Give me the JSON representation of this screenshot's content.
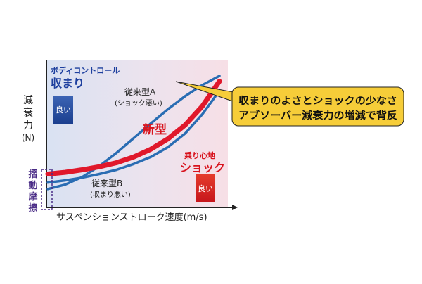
{
  "chart_data": {
    "type": "line",
    "xlabel": "サスペンションストローク速度(m/s)",
    "ylabel": [
      "減",
      "衰",
      "力",
      "(N)"
    ],
    "grid": false,
    "legend": "inline labels",
    "series": [
      {
        "name": "新型",
        "color": "#e0182b",
        "x": [
          0,
          1,
          2,
          3,
          4,
          5,
          6,
          7,
          8,
          9,
          10
        ],
        "values": [
          14,
          14.8,
          16,
          17.4,
          19.3,
          22,
          25.6,
          30.5,
          37,
          45.8,
          57.5
        ]
      },
      {
        "name": "従来型A",
        "sublabel": "(ショック悪い)",
        "color": "#2a6db3",
        "x": [
          0,
          1,
          2,
          3,
          4,
          5,
          6,
          7,
          8,
          9,
          10
        ],
        "values": [
          7,
          9,
          12.6,
          17.7,
          23.9,
          30.8,
          37.7,
          44.4,
          50.5,
          55.7,
          60
        ]
      },
      {
        "name": "従来型B",
        "sublabel": "(収まり悪い)",
        "color": "#2a6db3",
        "x": [
          0,
          1,
          2,
          3,
          4,
          5,
          6,
          7,
          8,
          9,
          10
        ],
        "values": [
          10,
          11,
          12.3,
          14,
          16,
          18.7,
          22,
          26.6,
          33,
          42,
          53
        ]
      }
    ],
    "annotations": {
      "body_control_line1": "ボディコントロール",
      "body_control_line2": "収まり",
      "good_left": "良い",
      "ride_line1": "乗り心地",
      "ride_line2": "ショック",
      "good_right": "良い",
      "friction": [
        "摺",
        "動",
        "摩",
        "擦"
      ],
      "callout_line1": "収まりのよさとショックの少なさ",
      "callout_line2": "アブソーバー減衰力の増減で背反"
    },
    "colors": {
      "new_model": "#e0182b",
      "conventional": "#2a6db3",
      "label_blue": "#1d3f9e",
      "label_red": "#d8141e",
      "friction_purple": "#4a2c86",
      "callout_fill": "#f6cd39",
      "background_left": "#d9e2f2",
      "background_right": "#f7dfe6"
    }
  }
}
